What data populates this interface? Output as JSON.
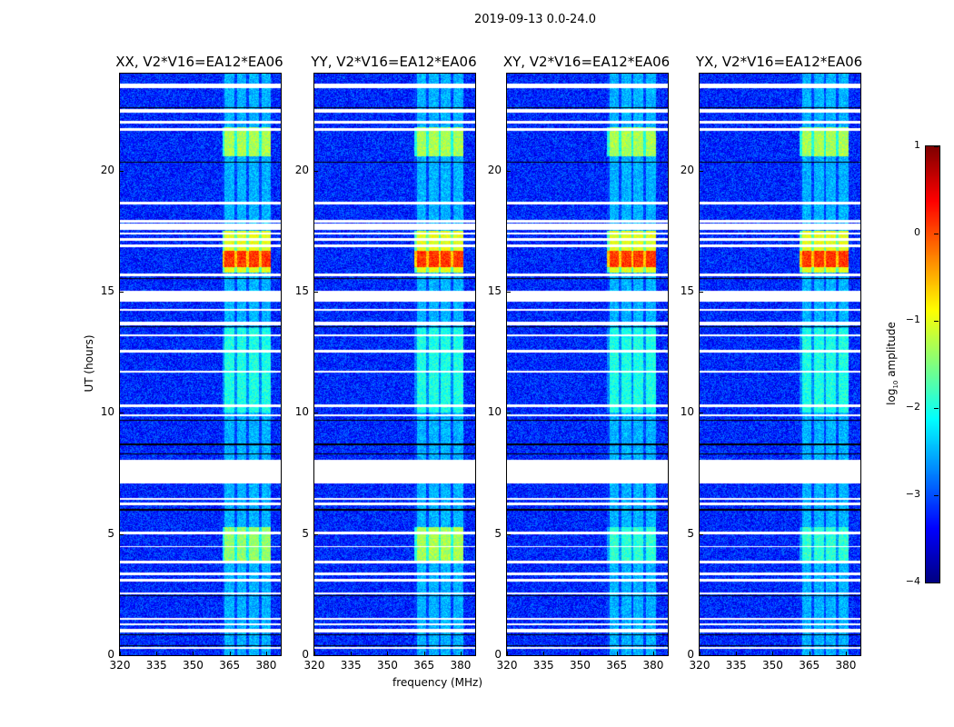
{
  "chart_data": {
    "type": "heatmap",
    "title": "2019-09-13 0.0-24.0",
    "xlabel": "frequency (MHz)",
    "ylabel": "UT (hours)",
    "xlim": [
      320,
      386
    ],
    "ylim": [
      0,
      24
    ],
    "xticks": [
      "320",
      "335",
      "350",
      "365",
      "380"
    ],
    "xtick_values": [
      320,
      335,
      350,
      365,
      380
    ],
    "yticks": [
      "0",
      "5",
      "10",
      "15",
      "20"
    ],
    "ytick_values": [
      0,
      5,
      10,
      15,
      20
    ],
    "panels": [
      {
        "title": "XX, V2*V16=EA12*EA06",
        "low_band_level": -1.4,
        "band_start": 363
      },
      {
        "title": "YY, V2*V16=EA12*EA06",
        "low_band_level": -1.3,
        "band_start": 362
      },
      {
        "title": "XY, V2*V16=EA12*EA06",
        "low_band_level": -1.9,
        "band_start": 362
      },
      {
        "title": "YX, V2*V16=EA12*EA06",
        "low_band_level": -1.9,
        "band_start": 362
      }
    ],
    "background_level": -3.2,
    "band_channels": [
      [
        0,
        4
      ],
      [
        5,
        9
      ],
      [
        10,
        14
      ],
      [
        15,
        19
      ]
    ],
    "emission_intervals": [
      {
        "h0": 0,
        "h1": 24,
        "level": -2.5
      },
      {
        "h0": 20.6,
        "h1": 21.8,
        "level": -1.3
      },
      {
        "h0": 15.8,
        "h1": 17.5,
        "level": -1.0
      },
      {
        "h0": 16.0,
        "h1": 16.7,
        "level": 0.1
      },
      {
        "h0": 10,
        "h1": 13.5,
        "level": -2.0
      }
    ],
    "low_band_interval": [
      3.9,
      5.3
    ],
    "flagged_hours": [
      [
        23.4,
        23.6
      ],
      [
        22.4,
        22.55
      ],
      [
        21.95,
        22.05
      ],
      [
        21.65,
        21.75
      ],
      [
        18.6,
        18.7
      ],
      [
        17.85,
        17.95
      ],
      [
        17.55,
        17.8
      ],
      [
        17.35,
        17.45
      ],
      [
        17.1,
        17.2
      ],
      [
        16.85,
        16.95
      ],
      [
        15.65,
        15.75
      ],
      [
        14.6,
        15.05
      ],
      [
        14.2,
        14.3
      ],
      [
        13.6,
        13.75
      ],
      [
        13.15,
        13.25
      ],
      [
        12.5,
        12.6
      ],
      [
        11.65,
        11.75
      ],
      [
        10.25,
        10.35
      ],
      [
        9.85,
        9.95
      ],
      [
        7.1,
        8.05
      ],
      [
        6.4,
        6.5
      ],
      [
        6.2,
        6.3
      ],
      [
        5.0,
        5.1
      ],
      [
        4.45,
        4.5
      ],
      [
        3.8,
        3.9
      ],
      [
        3.3,
        3.4
      ],
      [
        3.05,
        3.15
      ],
      [
        2.5,
        2.6
      ],
      [
        1.45,
        1.55
      ],
      [
        1.22,
        1.32
      ],
      [
        0.95,
        1.1
      ],
      [
        0.25,
        0.35
      ]
    ],
    "separator_hours": [
      22.6,
      20.35,
      15.55,
      13.55,
      9.7,
      8.7,
      8.3,
      6.0,
      3.85,
      2.45,
      0.85,
      0.4
    ],
    "colorbar": {
      "label": "log10 amplitude",
      "label_main": "log",
      "label_sub": "10",
      "label_rest": " amplitude",
      "range": [
        -4,
        1
      ],
      "ticks": [
        "1",
        "0",
        "−1",
        "−2",
        "−3",
        "−4"
      ],
      "tick_values": [
        1,
        0,
        -1,
        -2,
        -3,
        -4
      ],
      "colormap": "jet"
    }
  }
}
